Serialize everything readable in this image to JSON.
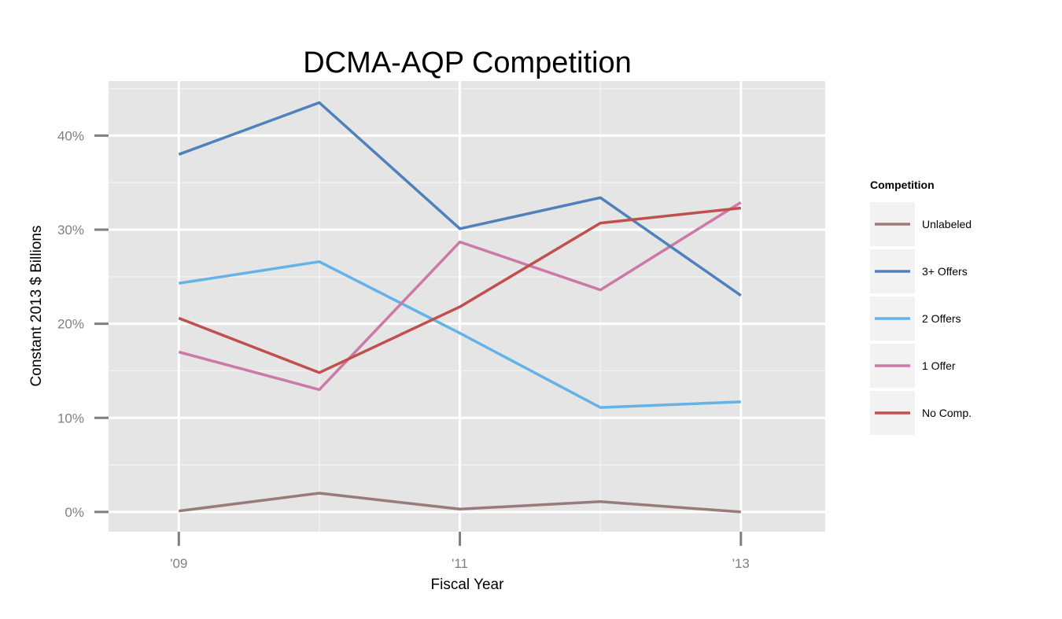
{
  "chart_data": {
    "type": "line",
    "title": "DCMA-AQP Competition",
    "xlabel": "Fiscal Year",
    "ylabel": "Constant 2013 $ Billions",
    "x": [
      2009,
      2010,
      2011,
      2012,
      2013
    ],
    "xlim": [
      2008.5,
      2013.6
    ],
    "ylim": [
      -0.021,
      0.458
    ],
    "x_ticks": [
      2009,
      2011,
      2013
    ],
    "x_tick_labels": [
      "'09",
      "'11",
      "'13"
    ],
    "y_ticks": [
      0,
      0.1,
      0.2,
      0.3,
      0.4
    ],
    "y_tick_labels": [
      "0%",
      "10%",
      "20%",
      "30%",
      "40%"
    ],
    "grid": true,
    "legend": {
      "title": "Competition",
      "position": "right"
    },
    "series": [
      {
        "name": "Unlabeled",
        "color": "#987b7b",
        "values": [
          0.001,
          0.02,
          0.003,
          0.011,
          0.0
        ]
      },
      {
        "name": "3+ Offers",
        "color": "#4f81bd",
        "values": [
          0.38,
          0.435,
          0.301,
          0.334,
          0.23
        ]
      },
      {
        "name": "2 Offers",
        "color": "#63b3e8",
        "values": [
          0.243,
          0.266,
          0.19,
          0.111,
          0.117
        ]
      },
      {
        "name": "1 Offer",
        "color": "#cc79a7",
        "values": [
          0.17,
          0.13,
          0.287,
          0.236,
          0.329
        ]
      },
      {
        "name": "No Comp.",
        "color": "#c0504d",
        "values": [
          0.206,
          0.148,
          0.218,
          0.307,
          0.323
        ]
      }
    ],
    "draw_order": [
      0,
      2,
      3,
      1,
      4
    ]
  },
  "colors": {
    "panel_background": "#e5e5e5",
    "grid_major": "#ffffff",
    "grid_minor": "#f2f2f2",
    "legend_key_background": "#f2f2f2",
    "tick_color": "#7f7f7f"
  }
}
